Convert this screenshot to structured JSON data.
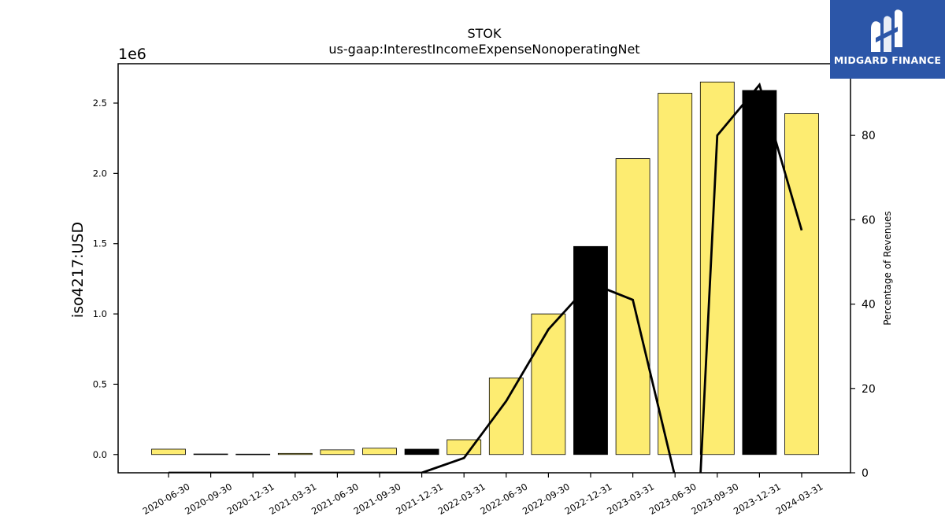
{
  "chart_data": {
    "type": "bar",
    "title": "STOK",
    "subtitle": "us-gaap:InterestIncomeExpenseNonoperatingNet",
    "ylabel": "iso4217:USD",
    "y2label": "Percentage of Revenues",
    "y_offset_label": "1e6",
    "categories": [
      "2020-06-30",
      "2020-09-30",
      "2020-12-31",
      "2021-03-31",
      "2021-06-30",
      "2021-09-30",
      "2021-12-31",
      "2022-03-31",
      "2022-06-30",
      "2022-09-30",
      "2022-12-31",
      "2023-03-31",
      "2023-06-30",
      "2023-09-30",
      "2023-12-31",
      "2024-03-31"
    ],
    "series": [
      {
        "values": [
          38000,
          4000,
          3000,
          8000,
          33000,
          45000,
          38000,
          105000,
          545000,
          1000000,
          1480000,
          2105000,
          2570000,
          2650000,
          2590000,
          2425000
        ],
        "highlight": [
          false,
          false,
          false,
          false,
          false,
          false,
          true,
          false,
          false,
          false,
          true,
          false,
          false,
          false,
          true,
          false
        ],
        "colors": {
          "normal": "#fdec71",
          "highlight": "#000000"
        }
      },
      {
        "axis": "right",
        "type": "line",
        "values": [
          0,
          0,
          0,
          0,
          0,
          0,
          0,
          3.5,
          17,
          34,
          45,
          41,
          null,
          80,
          92,
          57.5
        ],
        "color": "#000000"
      }
    ],
    "ylim": [
      -130000,
      2780000
    ],
    "y_ticks": [
      "0.0",
      "0.5",
      "1.0",
      "1.5",
      "2.0",
      "2.5"
    ],
    "y_tick_values": [
      0,
      500000,
      1000000,
      1500000,
      2000000,
      2500000
    ],
    "y2lim": [
      0,
      97
    ],
    "y2_ticks": [
      "0",
      "20",
      "40",
      "60",
      "80"
    ],
    "y2_tick_values": [
      0,
      20,
      40,
      60,
      80
    ]
  },
  "logo": {
    "text": "MIDGARD FINANCE",
    "color": "#2c56a8"
  }
}
